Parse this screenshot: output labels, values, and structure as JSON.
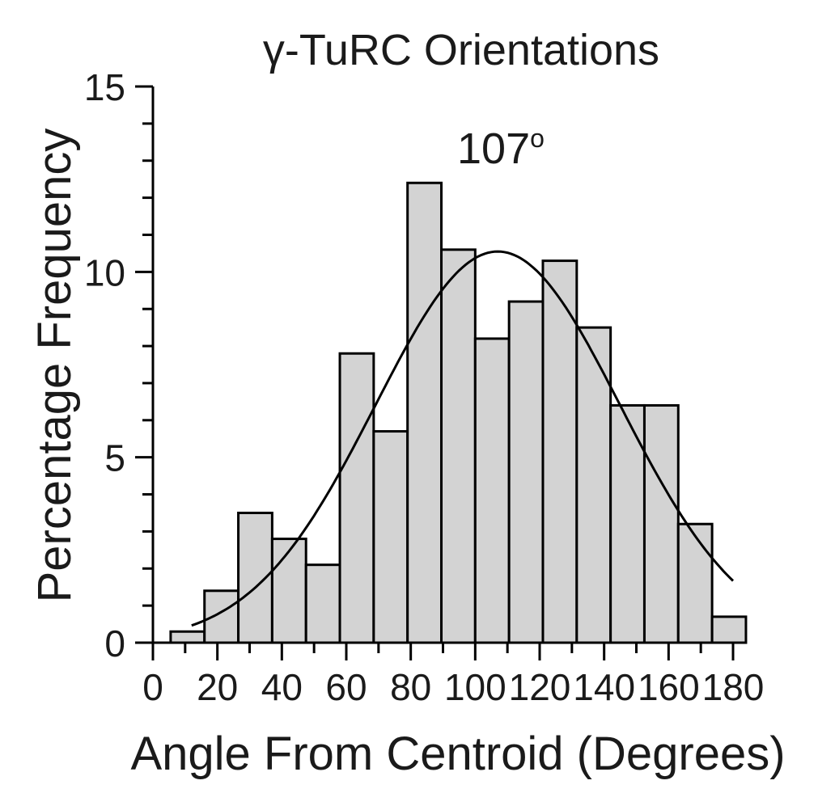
{
  "chart_data": {
    "type": "bar",
    "title": "γ-TuRC Orientations",
    "xlabel": "Angle From Centroid (Degrees)",
    "ylabel": "Percentage Frequency",
    "annotation": {
      "text": "107",
      "superscript": "o"
    },
    "xlim": [
      0,
      180
    ],
    "ylim": [
      0,
      15
    ],
    "xticks": [
      0,
      20,
      40,
      60,
      80,
      100,
      120,
      140,
      160,
      180
    ],
    "xtick_labels": [
      "0",
      "20",
      "40",
      "60",
      "80",
      "100",
      "120",
      "140",
      "160",
      "180"
    ],
    "yticks": [
      0,
      5,
      10,
      15
    ],
    "ytick_labels": [
      "0",
      "5",
      "10",
      "15"
    ],
    "bin_width": 10.5,
    "bins": [
      {
        "start": 5.5,
        "end": 16.0,
        "value": 0.3
      },
      {
        "start": 16.0,
        "end": 26.5,
        "value": 1.4
      },
      {
        "start": 26.5,
        "end": 37.0,
        "value": 3.5
      },
      {
        "start": 37.0,
        "end": 47.5,
        "value": 2.8
      },
      {
        "start": 47.5,
        "end": 58.0,
        "value": 2.1
      },
      {
        "start": 58.0,
        "end": 68.5,
        "value": 7.8
      },
      {
        "start": 68.5,
        "end": 79.0,
        "value": 5.7
      },
      {
        "start": 79.0,
        "end": 89.5,
        "value": 12.4
      },
      {
        "start": 89.5,
        "end": 100.0,
        "value": 10.6
      },
      {
        "start": 100.0,
        "end": 110.5,
        "value": 8.2
      },
      {
        "start": 110.5,
        "end": 121.0,
        "value": 9.2
      },
      {
        "start": 121.0,
        "end": 131.5,
        "value": 10.3
      },
      {
        "start": 131.5,
        "end": 142.0,
        "value": 8.5
      },
      {
        "start": 142.0,
        "end": 152.5,
        "value": 6.4
      },
      {
        "start": 152.5,
        "end": 163.0,
        "value": 6.4
      },
      {
        "start": 163.0,
        "end": 173.5,
        "value": 3.2
      },
      {
        "start": 173.5,
        "end": 184.0,
        "value": 0.7
      }
    ],
    "fit": {
      "type": "gaussian",
      "mean": 107,
      "sd": 38,
      "peak": 10.55,
      "x_start": 12,
      "x_end": 180
    }
  }
}
